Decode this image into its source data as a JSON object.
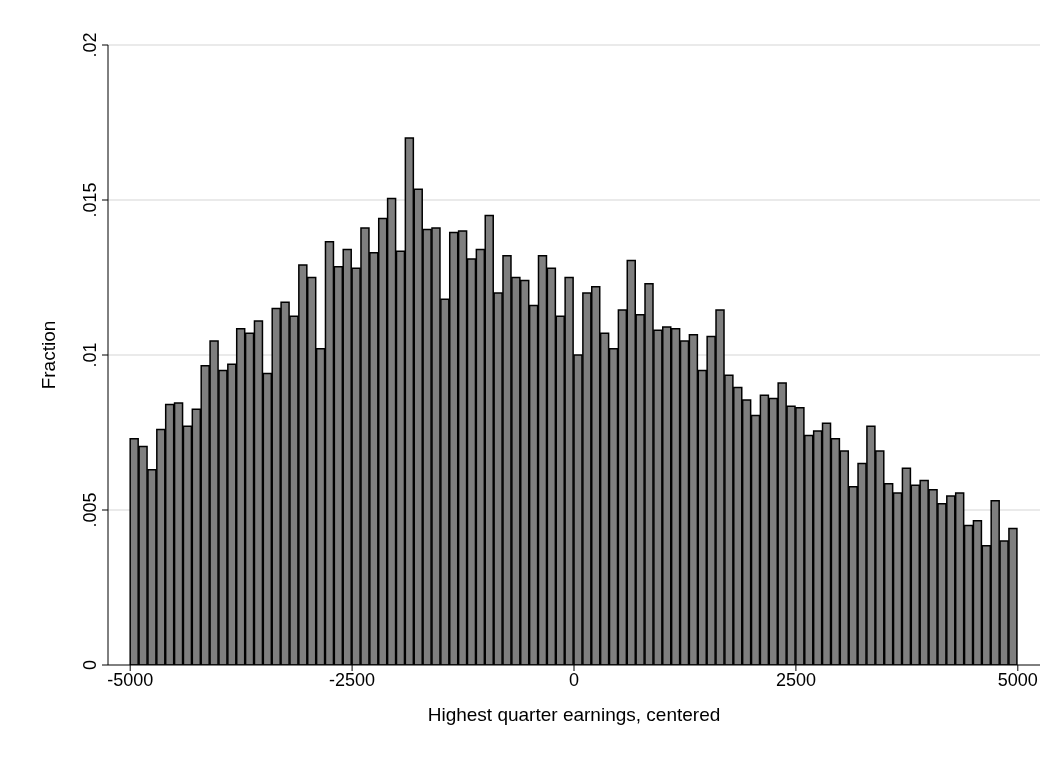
{
  "chart_data": {
    "type": "histogram",
    "xlabel": "Highest quarter earnings, centered",
    "ylabel": "Fraction",
    "bins": [
      -5000,
      -4900,
      -4800,
      -4700,
      -4600,
      -4500,
      -4400,
      -4300,
      -4200,
      -4100,
      -4000,
      -3900,
      -3800,
      -3700,
      -3600,
      -3500,
      -3400,
      -3300,
      -3200,
      -3100,
      -3000,
      -2900,
      -2800,
      -2700,
      -2600,
      -2500,
      -2400,
      -2300,
      -2200,
      -2100,
      -2000,
      -1900,
      -1800,
      -1700,
      -1600,
      -1500,
      -1400,
      -1300,
      -1200,
      -1100,
      -1000,
      -900,
      -800,
      -700,
      -600,
      -500,
      -400,
      -300,
      -200,
      -100,
      0,
      100,
      200,
      300,
      400,
      500,
      600,
      700,
      800,
      900,
      1000,
      1100,
      1200,
      1300,
      1400,
      1500,
      1600,
      1700,
      1800,
      1900,
      2000,
      2100,
      2200,
      2300,
      2400,
      2500,
      2600,
      2700,
      2800,
      2900,
      3000,
      3100,
      3200,
      3300,
      3400,
      3500,
      3600,
      3700,
      3800,
      3900,
      4000,
      4100,
      4200,
      4300,
      4400,
      4500,
      4600,
      4700,
      4800,
      4900,
      5000
    ],
    "values": [
      0.0073,
      0.00705,
      0.0063,
      0.0076,
      0.0084,
      0.00845,
      0.0077,
      0.00825,
      0.00965,
      0.01045,
      0.0095,
      0.0097,
      0.01085,
      0.0107,
      0.0111,
      0.0094,
      0.0115,
      0.0117,
      0.01125,
      0.0129,
      0.0125,
      0.0102,
      0.01365,
      0.01285,
      0.0134,
      0.0128,
      0.0141,
      0.0133,
      0.0144,
      0.01505,
      0.01335,
      0.017,
      0.01535,
      0.01405,
      0.0141,
      0.0118,
      0.01395,
      0.014,
      0.0131,
      0.0134,
      0.0145,
      0.012,
      0.0132,
      0.0125,
      0.0124,
      0.0116,
      0.0132,
      0.0128,
      0.01125,
      0.0125,
      0.01,
      0.012,
      0.0122,
      0.0107,
      0.0102,
      0.01145,
      0.01305,
      0.0113,
      0.0123,
      0.0108,
      0.0109,
      0.01085,
      0.01045,
      0.01065,
      0.0095,
      0.0106,
      0.01145,
      0.00935,
      0.00895,
      0.00855,
      0.00805,
      0.0087,
      0.0086,
      0.0091,
      0.00835,
      0.0083,
      0.0074,
      0.00755,
      0.0078,
      0.0073,
      0.0069,
      0.00575,
      0.0065,
      0.0077,
      0.0069,
      0.00585,
      0.00555,
      0.00635,
      0.0058,
      0.00595,
      0.00565,
      0.0052,
      0.00545,
      0.00555,
      0.0045,
      0.00465,
      0.00385,
      0.0053,
      0.004,
      0.0044
    ],
    "color": "#7f7f7f",
    "xlim": [
      -5250,
      5250
    ],
    "xticks": [
      -5000,
      -2500,
      0,
      2500,
      5000
    ],
    "ylim": [
      0,
      0.02
    ],
    "yticks": [
      0,
      {
        "value": 0.005,
        "label": ".005"
      },
      {
        "value": 0.01,
        "label": ".01"
      },
      {
        "value": 0.015,
        "label": ".015"
      },
      {
        "value": 0.02,
        "label": ".02"
      }
    ],
    "grid": "y"
  }
}
